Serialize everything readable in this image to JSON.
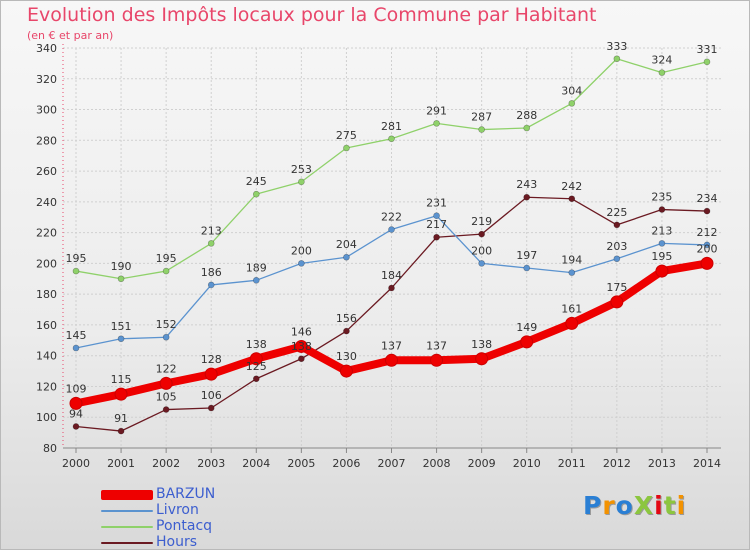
{
  "title": "Evolution des Impôts locaux pour la Commune par Habitant",
  "subtitle": "(en € et par an)",
  "logo": "ProXiti",
  "logo_colors": [
    "#2a7fd4",
    "#f39200",
    "#2a7fd4",
    "#8cc63f",
    "#e30613",
    "#8cc63f",
    "#f39200"
  ],
  "chart_data": {
    "type": "line",
    "title": "Evolution des Impôts locaux pour la Commune par Habitant",
    "subtitle": "(en € et par an)",
    "x": [
      "2000",
      "2001",
      "2002",
      "2003",
      "2004",
      "2005",
      "2006",
      "2007",
      "2008",
      "2009",
      "2010",
      "2011",
      "2012",
      "2013",
      "2014"
    ],
    "ylim": [
      80,
      340
    ],
    "yticks": [
      80,
      100,
      120,
      140,
      160,
      180,
      200,
      220,
      240,
      260,
      280,
      300,
      320,
      340
    ],
    "grid": true,
    "legend_position": "bottom-left",
    "series": [
      {
        "name": "Pontacq",
        "color": "#8fd16a",
        "values": [
          195,
          190,
          195,
          213,
          245,
          253,
          275,
          281,
          291,
          287,
          288,
          304,
          333,
          324,
          331
        ]
      },
      {
        "name": "Hours",
        "color": "#6b1a22",
        "values": [
          94,
          91,
          105,
          106,
          125,
          138,
          156,
          184,
          217,
          219,
          243,
          242,
          225,
          235,
          234
        ]
      },
      {
        "name": "Livron",
        "color": "#5b93cf",
        "values": [
          145,
          151,
          152,
          186,
          189,
          200,
          204,
          222,
          231,
          200,
          197,
          194,
          203,
          213,
          212
        ]
      },
      {
        "name": "BARZUN",
        "color": "#ee0000",
        "values": [
          109,
          115,
          122,
          128,
          138,
          146,
          130,
          137,
          137,
          138,
          149,
          161,
          175,
          195,
          200
        ]
      }
    ],
    "legend_order": [
      "BARZUN",
      "Livron",
      "Pontacq",
      "Hours"
    ]
  }
}
